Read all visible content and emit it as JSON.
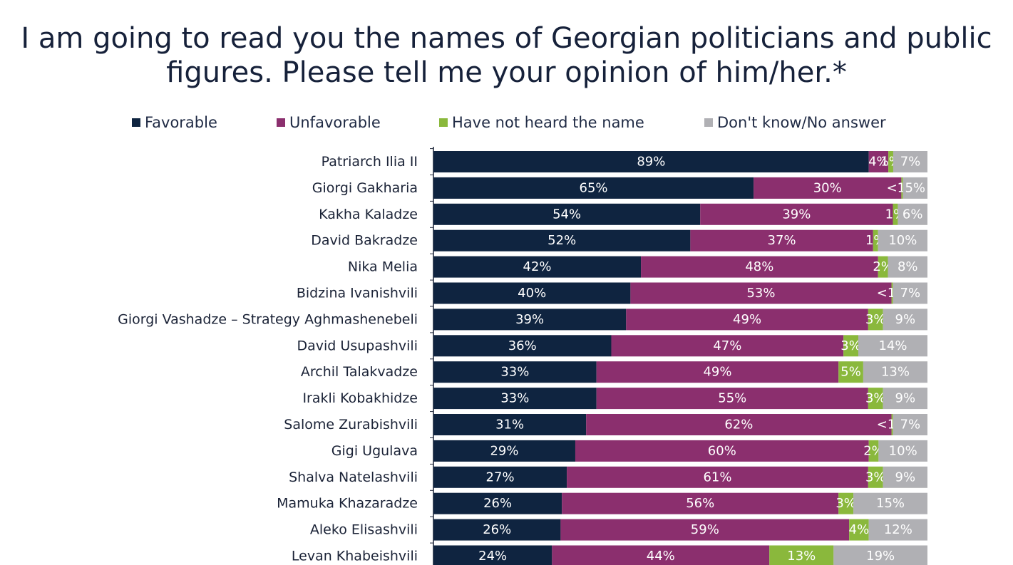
{
  "title": {
    "line1": "I am going to read you the names of Georgian politicians and public",
    "line2": "figures. Please tell me your opinion of him/her.*"
  },
  "colors": {
    "favorable": "#0f2440",
    "unfavorable": "#8b2f6e",
    "not_heard": "#8ab83c",
    "dont_know": "#b0b0b4"
  },
  "legend": [
    {
      "label": "Favorable",
      "color": "#0f2440"
    },
    {
      "label": "Unfavorable",
      "color": "#8b2f6e"
    },
    {
      "label": "Have not heard the name",
      "color": "#8ab83c"
    },
    {
      "label": "Don't know/No answer",
      "color": "#b0b0b4"
    }
  ],
  "chart_data": {
    "type": "bar",
    "orientation": "horizontal",
    "stacked": true,
    "categories": [
      "Patriarch Ilia II",
      "Giorgi Gakharia",
      "Kakha Kaladze",
      "David Bakradze",
      "Nika Melia",
      "Bidzina Ivanishvili",
      "Giorgi Vashadze – Strategy Aghmashenebeli",
      "David Usupashvili",
      "Archil Talakvadze",
      "Irakli Kobakhidze",
      "Salome Zurabishvili",
      "Gigi Ugulava",
      "Shalva Natelashvili",
      "Mamuka Khazaradze",
      "Aleko Elisashvili",
      "Levan Khabeishvili"
    ],
    "series": [
      {
        "name": "Favorable",
        "values": [
          89,
          65,
          54,
          52,
          42,
          40,
          39,
          36,
          33,
          33,
          31,
          29,
          27,
          26,
          26,
          24
        ],
        "labels": [
          "89%",
          "65%",
          "54%",
          "52%",
          "42%",
          "40%",
          "39%",
          "36%",
          "33%",
          "33%",
          "31%",
          "29%",
          "27%",
          "26%",
          "26%",
          "24%"
        ]
      },
      {
        "name": "Unfavorable",
        "values": [
          4,
          30,
          39,
          37,
          48,
          53,
          49,
          47,
          49,
          55,
          62,
          60,
          61,
          56,
          59,
          44
        ],
        "labels": [
          "4%",
          "30%",
          "39%",
          "37%",
          "48%",
          "53%",
          "49%",
          "47%",
          "49%",
          "55%",
          "62%",
          "60%",
          "61%",
          "56%",
          "59%",
          "44%"
        ]
      },
      {
        "name": "Have not heard the name",
        "values": [
          1,
          0.3,
          1,
          1,
          2,
          0.3,
          3,
          3,
          5,
          3,
          0.3,
          2,
          3,
          3,
          4,
          13
        ],
        "labels": [
          "1%",
          "<1%",
          "1%",
          "1%",
          "2%",
          "<1%",
          "3%",
          "3%",
          "5%",
          "3%",
          "<1%",
          "2%",
          "3%",
          "3%",
          "4%",
          "13%"
        ]
      },
      {
        "name": "Don't know/No answer",
        "values": [
          7,
          5,
          6,
          10,
          8,
          7,
          9,
          14,
          13,
          9,
          7,
          10,
          9,
          15,
          12,
          19
        ],
        "labels": [
          "7%",
          "5%",
          "6%",
          "10%",
          "8%",
          "7%",
          "9%",
          "14%",
          "13%",
          "9%",
          "7%",
          "10%",
          "9%",
          "15%",
          "12%",
          "19%"
        ]
      }
    ],
    "xlim": [
      0,
      101
    ],
    "legend_position": "top",
    "grid": false
  }
}
